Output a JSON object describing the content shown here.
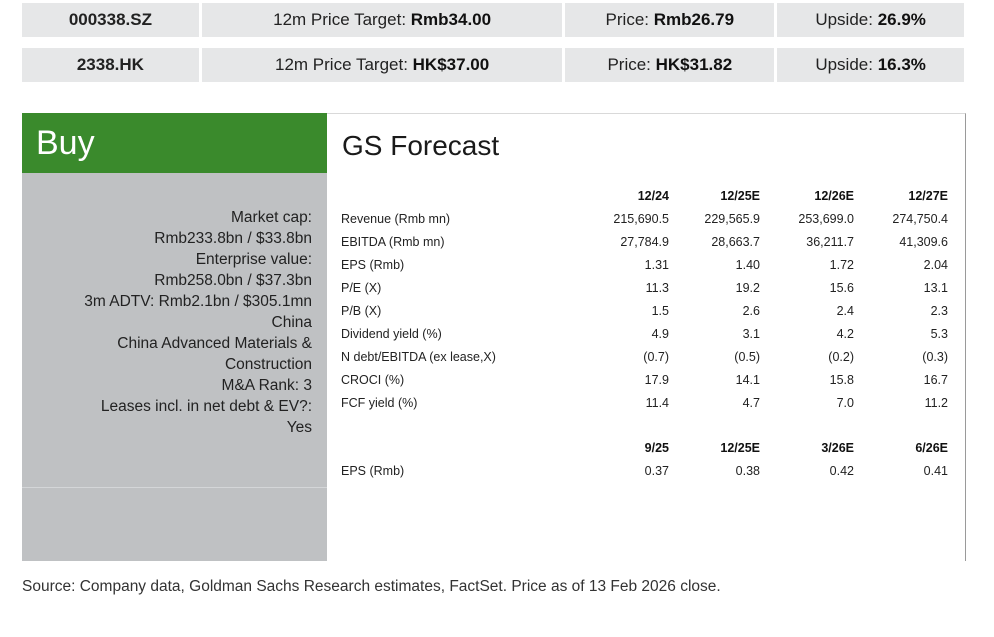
{
  "ticker_rows": [
    {
      "ticker": "000338.SZ",
      "target_label": "12m Price Target: ",
      "target_value": "Rmb34.00",
      "price_label": "Price: ",
      "price_value": "Rmb26.79",
      "upside_label": "Upside: ",
      "upside_value": "26.9%"
    },
    {
      "ticker": "2338.HK",
      "target_label": "12m Price Target: ",
      "target_value": "HK$37.00",
      "price_label": "Price: ",
      "price_value": "HK$31.82",
      "upside_label": "Upside: ",
      "upside_value": "16.3%"
    }
  ],
  "rating": "Buy",
  "rating_color": "#3a8a2c",
  "left_info": [
    "Market cap:",
    "Rmb233.8bn / $33.8bn",
    "Enterprise value:",
    "Rmb258.0bn / $37.3bn",
    "3m ADTV: Rmb2.1bn / $305.1mn",
    "China",
    "China Advanced Materials &",
    "Construction",
    "M&A Rank: 3",
    "Leases incl. in net debt & EV?:",
    "Yes"
  ],
  "forecast": {
    "title": "GS Forecast",
    "annual_headers": [
      "12/24",
      "12/25E",
      "12/26E",
      "12/27E"
    ],
    "annual_rows": [
      {
        "label": "Revenue (Rmb mn)",
        "values": [
          "215,690.5",
          "229,565.9",
          "253,699.0",
          "274,750.4"
        ]
      },
      {
        "label": "EBITDA (Rmb mn)",
        "values": [
          "27,784.9",
          "28,663.7",
          "36,211.7",
          "41,309.6"
        ]
      },
      {
        "label": "EPS (Rmb)",
        "values": [
          "1.31",
          "1.40",
          "1.72",
          "2.04"
        ]
      },
      {
        "label": "P/E (X)",
        "values": [
          "11.3",
          "19.2",
          "15.6",
          "13.1"
        ]
      },
      {
        "label": "P/B (X)",
        "values": [
          "1.5",
          "2.6",
          "2.4",
          "2.3"
        ]
      },
      {
        "label": "Dividend yield (%)",
        "values": [
          "4.9",
          "3.1",
          "4.2",
          "5.3"
        ]
      },
      {
        "label": "N debt/EBITDA (ex lease,X)",
        "values": [
          "(0.7)",
          "(0.5)",
          "(0.2)",
          "(0.3)"
        ]
      },
      {
        "label": "CROCI (%)",
        "values": [
          "17.9",
          "14.1",
          "15.8",
          "16.7"
        ]
      },
      {
        "label": "FCF yield (%)",
        "values": [
          "11.4",
          "4.7",
          "7.0",
          "11.2"
        ]
      }
    ],
    "quarterly_headers": [
      "9/25",
      "12/25E",
      "3/26E",
      "6/26E"
    ],
    "quarterly_rows": [
      {
        "label": "EPS (Rmb)",
        "values": [
          "0.37",
          "0.38",
          "0.42",
          "0.41"
        ]
      }
    ]
  },
  "source": "Source: Company data, Goldman Sachs Research estimates, FactSet. Price as of 13 Feb 2026 close."
}
